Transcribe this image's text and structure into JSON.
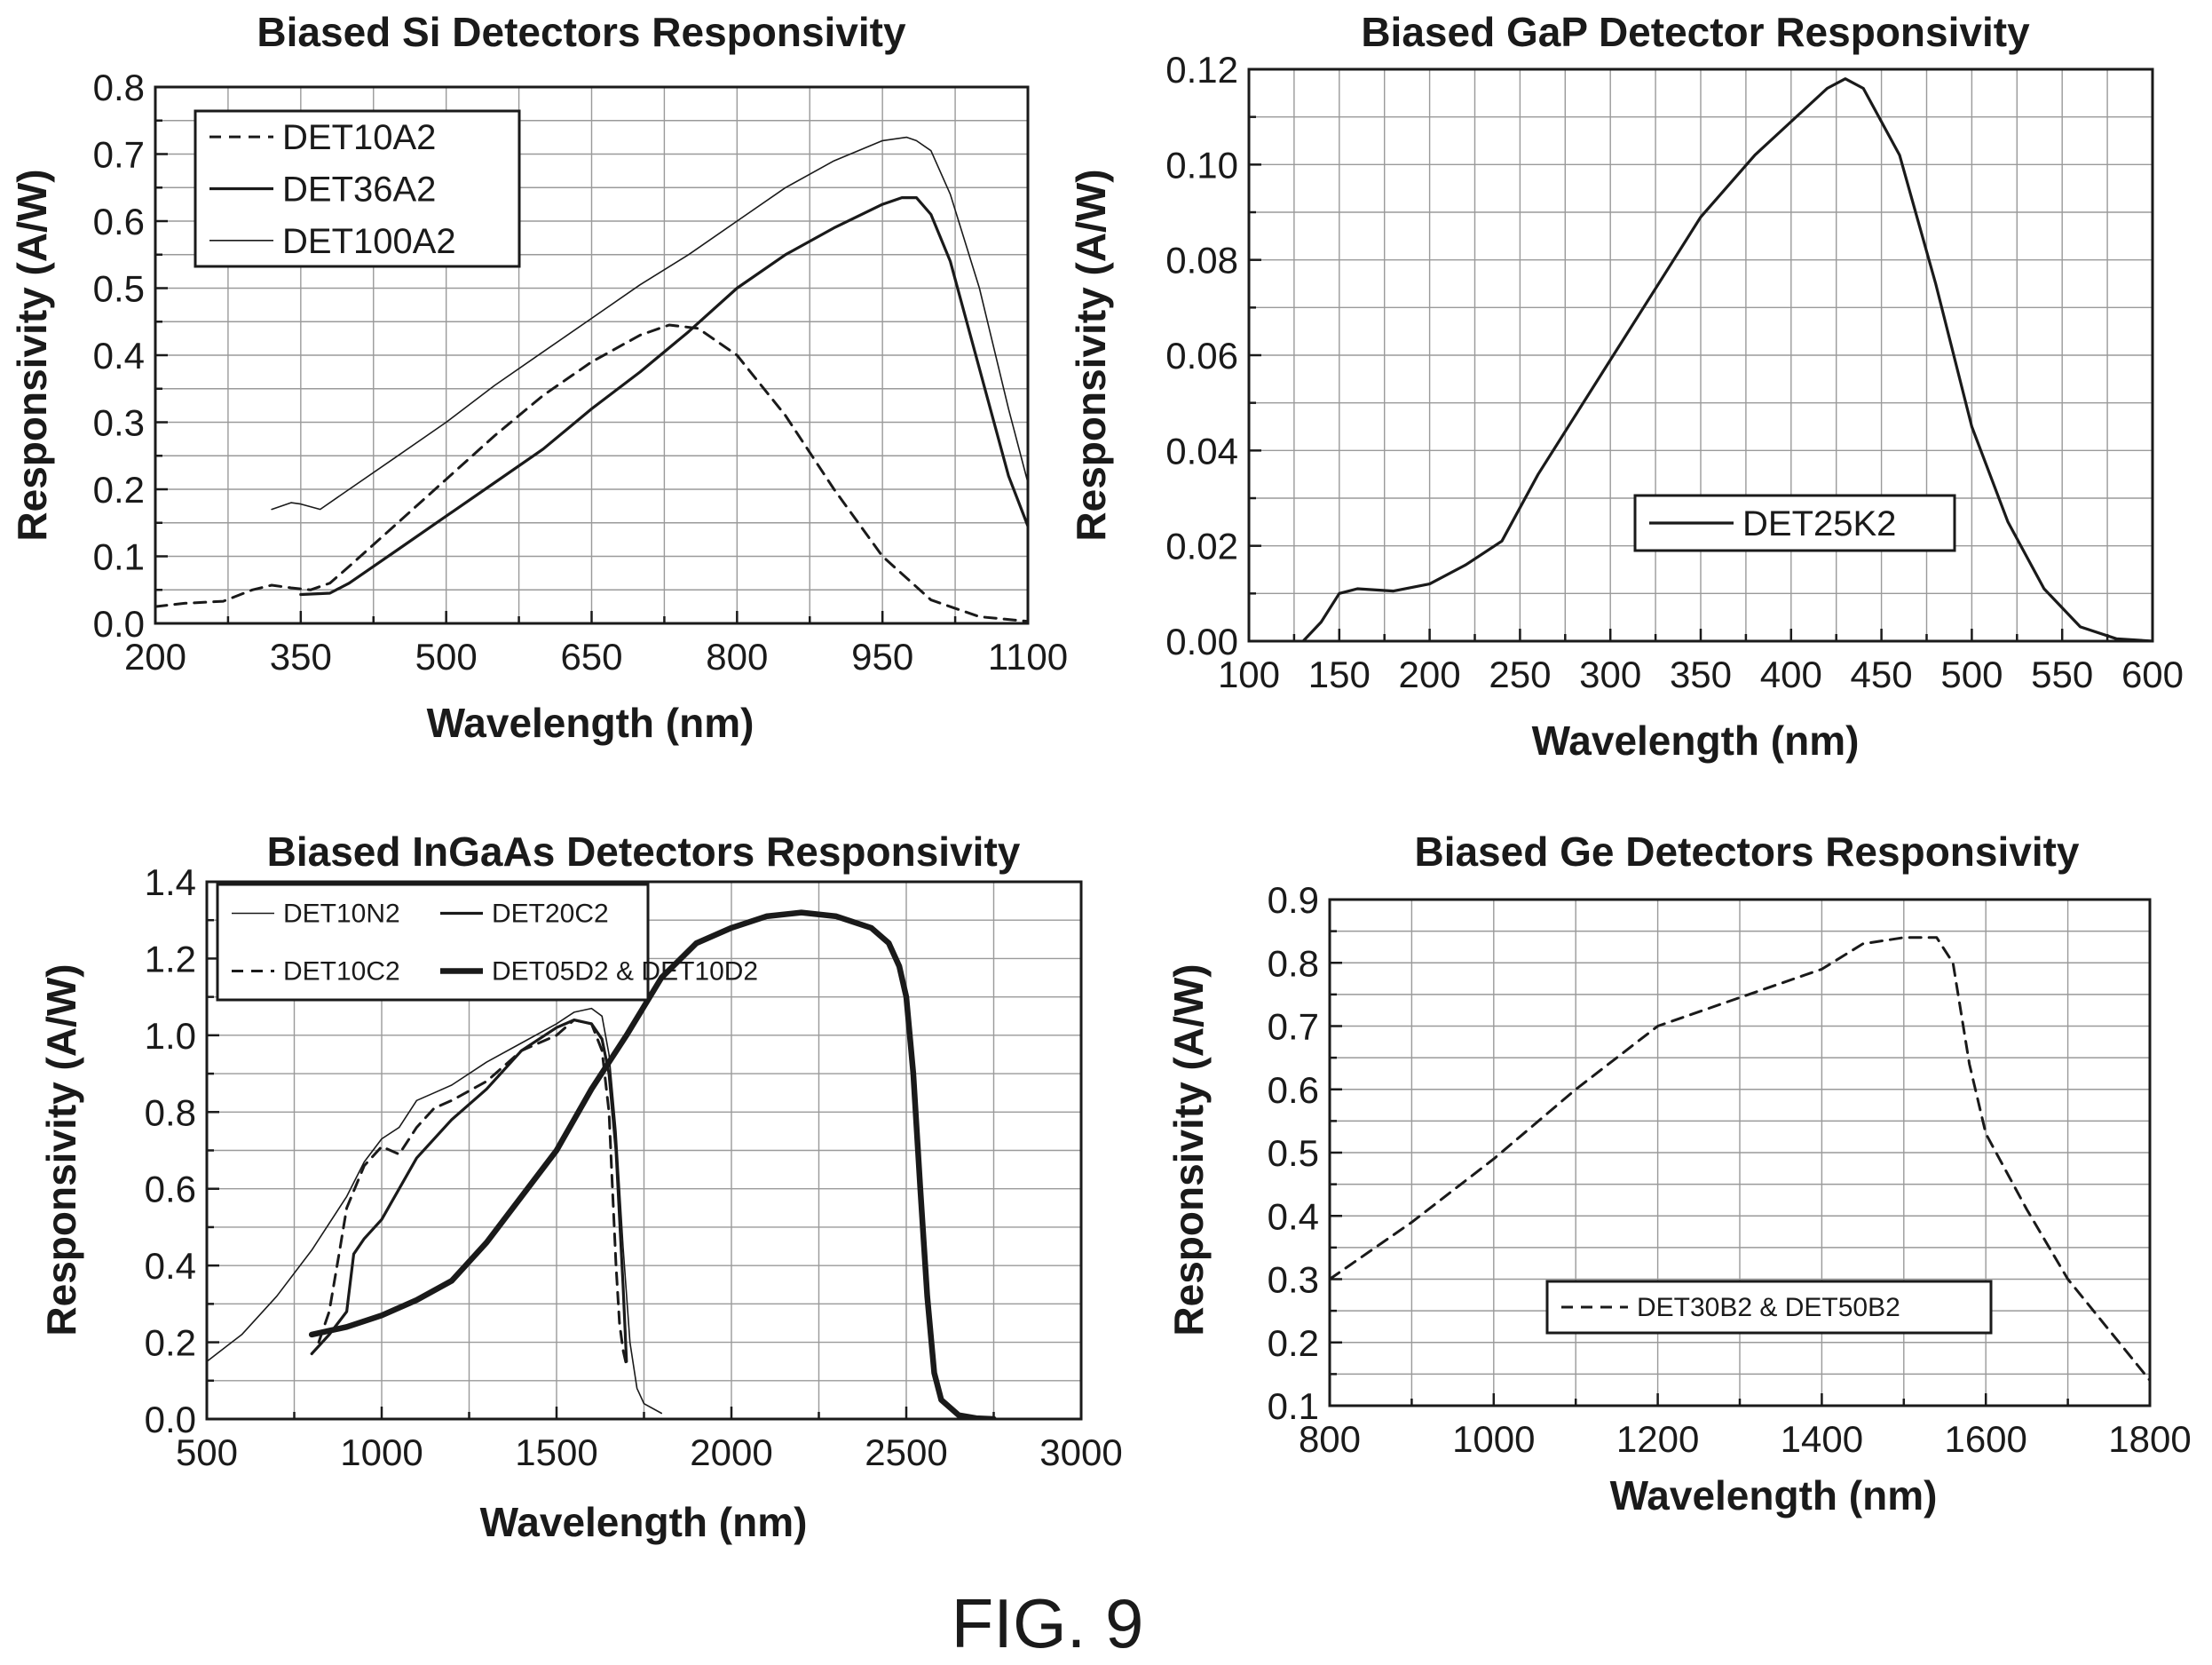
{
  "figure_caption": "FIG. 9",
  "chart_data": [
    {
      "type": "line",
      "title": "Biased Si Detectors Responsivity",
      "xlabel": "Wavelength (nm)",
      "ylabel": "Responsivity (A/W)",
      "xlim": [
        200,
        1100
      ],
      "ylim": [
        0.0,
        0.8
      ],
      "xticks": [
        200,
        350,
        500,
        650,
        800,
        950,
        1100
      ],
      "yticks": [
        "0.0",
        "0.1",
        "0.2",
        "0.3",
        "0.4",
        "0.5",
        "0.6",
        "0.7",
        "0.8"
      ],
      "grid": true,
      "legend_position": "top-left",
      "series": [
        {
          "name": "DET10A2",
          "style": "dashed",
          "x": [
            200,
            230,
            270,
            300,
            320,
            340,
            360,
            380,
            400,
            450,
            500,
            550,
            600,
            650,
            700,
            730,
            760,
            800,
            850,
            900,
            950,
            1000,
            1050,
            1100
          ],
          "y": [
            0.025,
            0.03,
            0.033,
            0.05,
            0.057,
            0.053,
            0.05,
            0.06,
            0.085,
            0.15,
            0.215,
            0.28,
            0.34,
            0.39,
            0.43,
            0.445,
            0.44,
            0.4,
            0.31,
            0.2,
            0.1,
            0.035,
            0.01,
            0.003
          ]
        },
        {
          "name": "DET36A2",
          "style": "solid",
          "x": [
            350,
            380,
            400,
            450,
            500,
            550,
            600,
            650,
            700,
            750,
            800,
            850,
            900,
            950,
            970,
            985,
            1000,
            1020,
            1050,
            1080,
            1100
          ],
          "y": [
            0.043,
            0.045,
            0.06,
            0.11,
            0.16,
            0.21,
            0.26,
            0.32,
            0.375,
            0.435,
            0.5,
            0.55,
            0.59,
            0.625,
            0.635,
            0.635,
            0.61,
            0.54,
            0.38,
            0.22,
            0.145
          ]
        },
        {
          "name": "DET100A2",
          "style": "thin",
          "x": [
            320,
            340,
            350,
            370,
            400,
            450,
            500,
            550,
            600,
            650,
            700,
            750,
            800,
            850,
            900,
            950,
            975,
            985,
            1000,
            1020,
            1050,
            1080,
            1100
          ],
          "y": [
            0.17,
            0.18,
            0.178,
            0.17,
            0.2,
            0.25,
            0.3,
            0.355,
            0.405,
            0.455,
            0.505,
            0.55,
            0.6,
            0.65,
            0.69,
            0.72,
            0.725,
            0.72,
            0.705,
            0.64,
            0.5,
            0.32,
            0.21
          ]
        }
      ]
    },
    {
      "type": "line",
      "title": "Biased GaP Detector Responsivity",
      "xlabel": "Wavelength (nm)",
      "ylabel": "Responsivity (A/W)",
      "xlim": [
        100,
        600
      ],
      "ylim": [
        0.0,
        0.12
      ],
      "xticks": [
        100,
        150,
        200,
        250,
        300,
        350,
        400,
        450,
        500,
        550,
        600
      ],
      "yticks": [
        "0.00",
        "0.02",
        "0.04",
        "0.06",
        "0.08",
        "0.10",
        "0.12"
      ],
      "grid": true,
      "legend_position": "lower-center",
      "series": [
        {
          "name": "DET25K2",
          "style": "solid",
          "x": [
            130,
            140,
            150,
            160,
            180,
            200,
            220,
            240,
            260,
            280,
            300,
            330,
            350,
            380,
            400,
            420,
            430,
            440,
            460,
            480,
            500,
            520,
            540,
            560,
            580,
            600
          ],
          "y": [
            0.0,
            0.004,
            0.01,
            0.011,
            0.0105,
            0.012,
            0.016,
            0.021,
            0.035,
            0.047,
            0.059,
            0.077,
            0.089,
            0.102,
            0.109,
            0.116,
            0.118,
            0.116,
            0.102,
            0.075,
            0.045,
            0.025,
            0.011,
            0.003,
            0.0005,
            0.0
          ]
        }
      ]
    },
    {
      "type": "line",
      "title": "Biased InGaAs Detectors Responsivity",
      "xlabel": "Wavelength (nm)",
      "ylabel": "Responsivity (A/W)",
      "xlim": [
        500,
        3000
      ],
      "ylim": [
        0.0,
        1.4
      ],
      "xticks": [
        500,
        1000,
        1500,
        2000,
        2500,
        3000
      ],
      "yticks": [
        "0.0",
        "0.2",
        "0.4",
        "0.6",
        "0.8",
        "1.0",
        "1.2",
        "1.4"
      ],
      "grid": true,
      "legend_position": "top-left",
      "series": [
        {
          "name": "DET10N2",
          "style": "thin",
          "x": [
            500,
            600,
            700,
            800,
            900,
            950,
            1000,
            1050,
            1100,
            1150,
            1200,
            1300,
            1400,
            1500,
            1550,
            1600,
            1630,
            1650,
            1670,
            1690,
            1710,
            1730,
            1750,
            1800
          ],
          "y": [
            0.15,
            0.22,
            0.32,
            0.44,
            0.58,
            0.67,
            0.73,
            0.76,
            0.83,
            0.85,
            0.87,
            0.93,
            0.98,
            1.03,
            1.06,
            1.07,
            1.05,
            0.95,
            0.75,
            0.45,
            0.2,
            0.08,
            0.04,
            0.015
          ]
        },
        {
          "name": "DET20C2",
          "style": "solid",
          "x": [
            800,
            850,
            900,
            920,
            950,
            1000,
            1050,
            1100,
            1200,
            1300,
            1400,
            1500,
            1550,
            1600,
            1630,
            1650,
            1670,
            1690,
            1700
          ],
          "y": [
            0.17,
            0.22,
            0.28,
            0.43,
            0.47,
            0.52,
            0.6,
            0.68,
            0.78,
            0.86,
            0.96,
            1.02,
            1.04,
            1.03,
            0.99,
            0.9,
            0.7,
            0.35,
            0.15
          ]
        },
        {
          "name": "DET10C2",
          "style": "dashed",
          "x": [
            820,
            850,
            880,
            900,
            950,
            1000,
            1050,
            1100,
            1150,
            1200,
            1300,
            1400,
            1500,
            1550,
            1600,
            1630,
            1650,
            1660,
            1670,
            1680,
            1690,
            1700
          ],
          "y": [
            0.2,
            0.28,
            0.44,
            0.55,
            0.66,
            0.71,
            0.69,
            0.76,
            0.81,
            0.83,
            0.88,
            0.96,
            1.0,
            1.04,
            1.03,
            0.96,
            0.8,
            0.6,
            0.4,
            0.25,
            0.18,
            0.14
          ]
        },
        {
          "name": "DET05D2 & DET10D2",
          "style": "heavy",
          "x": [
            800,
            850,
            900,
            1000,
            1100,
            1200,
            1300,
            1400,
            1500,
            1600,
            1700,
            1800,
            1900,
            2000,
            2100,
            2200,
            2300,
            2400,
            2450,
            2480,
            2500,
            2520,
            2540,
            2560,
            2580,
            2600,
            2650,
            2700,
            2750
          ],
          "y": [
            0.22,
            0.23,
            0.24,
            0.27,
            0.31,
            0.36,
            0.46,
            0.58,
            0.7,
            0.86,
            1.0,
            1.15,
            1.24,
            1.28,
            1.31,
            1.32,
            1.31,
            1.28,
            1.24,
            1.18,
            1.1,
            0.9,
            0.6,
            0.32,
            0.12,
            0.05,
            0.01,
            0.002,
            0.0
          ]
        }
      ]
    },
    {
      "type": "line",
      "title": "Biased Ge Detectors Responsivity",
      "xlabel": "Wavelength (nm)",
      "ylabel": "Responsivity (A/W)",
      "xlim": [
        800,
        1800
      ],
      "ylim": [
        0.1,
        0.9
      ],
      "xticks": [
        800,
        1000,
        1200,
        1400,
        1600,
        1800
      ],
      "yticks": [
        "0.1",
        "0.2",
        "0.3",
        "0.4",
        "0.5",
        "0.6",
        "0.7",
        "0.8",
        "0.9"
      ],
      "grid": true,
      "legend_position": "lower-center",
      "series": [
        {
          "name": "DET30B2 & DET50B2",
          "style": "dashed",
          "x": [
            800,
            900,
            1000,
            1100,
            1200,
            1300,
            1400,
            1450,
            1500,
            1540,
            1560,
            1580,
            1600,
            1650,
            1700,
            1750,
            1800
          ],
          "y": [
            0.3,
            0.39,
            0.49,
            0.6,
            0.7,
            0.745,
            0.79,
            0.83,
            0.84,
            0.84,
            0.8,
            0.64,
            0.53,
            0.41,
            0.3,
            0.22,
            0.14
          ]
        }
      ]
    }
  ]
}
